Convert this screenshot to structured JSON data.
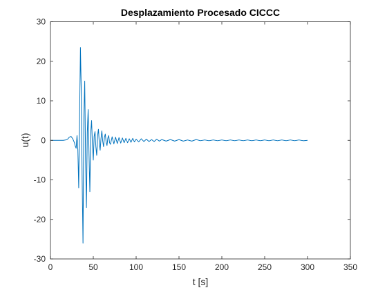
{
  "chart_data": {
    "type": "line",
    "title": "Desplazamiento Procesado CICCC",
    "xlabel": "t [s]",
    "ylabel": "u(t)",
    "xlim": [
      0,
      350
    ],
    "ylim": [
      -30,
      30
    ],
    "xticks": [
      0,
      50,
      100,
      150,
      200,
      250,
      300,
      350
    ],
    "yticks": [
      -30,
      -20,
      -10,
      0,
      10,
      20,
      30
    ],
    "xtick_labels": [
      "0",
      "50",
      "100",
      "150",
      "200",
      "250",
      "300",
      "350"
    ],
    "ytick_labels": [
      "-30",
      "-20",
      "-10",
      "0",
      "10",
      "20",
      "30"
    ],
    "grid": false,
    "box": true,
    "series": [
      {
        "color": "#0072BD",
        "x": [
          0,
          15,
          18,
          20,
          22,
          24,
          26,
          28,
          29,
          30,
          31,
          32,
          33,
          34,
          35,
          36,
          37,
          38,
          39,
          40,
          41,
          42,
          43,
          44,
          45,
          46,
          47,
          48,
          49,
          50,
          51,
          52,
          53,
          54,
          55,
          56,
          57,
          58,
          59,
          60,
          61,
          62,
          63,
          64,
          65,
          66,
          67,
          68,
          69,
          70,
          72,
          74,
          76,
          78,
          80,
          82,
          84,
          86,
          88,
          90,
          92,
          94,
          96,
          98,
          100,
          103,
          106,
          109,
          112,
          115,
          118,
          121,
          124,
          127,
          130,
          135,
          140,
          145,
          150,
          155,
          160,
          165,
          170,
          175,
          180,
          185,
          190,
          195,
          200,
          205,
          210,
          215,
          220,
          225,
          230,
          235,
          240,
          245,
          250,
          255,
          260,
          265,
          270,
          275,
          280,
          285,
          290,
          295,
          300
        ],
        "y": [
          0,
          0,
          0.1,
          0.3,
          0.8,
          1.0,
          0.4,
          -0.6,
          -1.5,
          -2.0,
          1.2,
          -2.5,
          -12.0,
          6.0,
          23.5,
          12.0,
          -10.0,
          -26.0,
          6.0,
          15.0,
          -5.0,
          -17.0,
          2.0,
          7.8,
          -3.5,
          -13.0,
          2.0,
          5.0,
          -1.0,
          -5.0,
          1.0,
          2.2,
          -1.6,
          -3.8,
          1.2,
          2.8,
          -0.6,
          -2.5,
          0.5,
          2.4,
          -0.2,
          -1.6,
          0.8,
          1.6,
          -0.5,
          -1.3,
          0.6,
          1.2,
          -0.6,
          -1.0,
          0.9,
          -0.9,
          0.8,
          -0.8,
          0.7,
          -0.7,
          0.6,
          -0.6,
          0.5,
          -0.6,
          0.4,
          -0.5,
          0.5,
          -0.4,
          0.3,
          -0.4,
          0.4,
          -0.3,
          0.3,
          -0.3,
          0.2,
          -0.3,
          0.3,
          -0.2,
          0.2,
          -0.2,
          0.2,
          -0.2,
          0.2,
          -0.2,
          0.1,
          -0.2,
          0.2,
          -0.1,
          0.1,
          -0.1,
          0.1,
          -0.1,
          0.1,
          -0.1,
          0.1,
          -0.1,
          0.1,
          -0.1,
          0.1,
          -0.1,
          0.1,
          -0.1,
          0.1,
          -0.1,
          0.1,
          -0.1,
          0.1,
          -0.1,
          0.1,
          -0.1,
          0.1,
          -0.1,
          0
        ]
      }
    ]
  }
}
